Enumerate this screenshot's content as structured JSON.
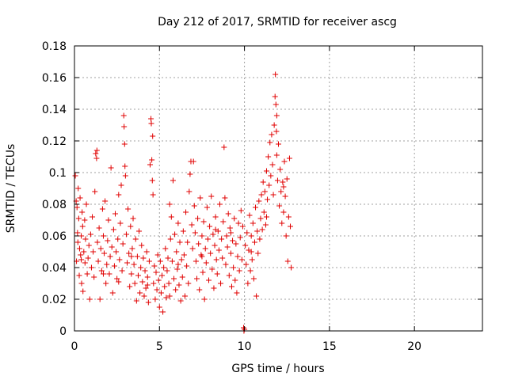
{
  "chart_data": {
    "type": "scatter",
    "title": "Day 212 of 2017, SRMTID for receiver ascg",
    "xlabel": "GPS time / hours",
    "ylabel": "SRMTID / TECUs",
    "xlim": [
      0,
      24
    ],
    "ylim": [
      0,
      0.18
    ],
    "x_ticks": [
      0,
      5,
      10,
      15,
      20
    ],
    "x_tick_labels": [
      "0",
      "5",
      "10",
      "15",
      "20"
    ],
    "y_ticks": [
      0,
      0.02,
      0.04,
      0.06,
      0.08,
      0.1,
      0.12,
      0.14,
      0.16,
      0.18
    ],
    "y_tick_labels": [
      "0",
      "0.02",
      "0.04",
      "0.06",
      "0.08",
      "0.1",
      "0.12",
      "0.14",
      "0.16",
      "0.18"
    ],
    "grid": true,
    "marker": "+",
    "color": "#e00000",
    "series": [
      {
        "name": "SRMTID",
        "points": [
          [
            0.05,
            0.098
          ],
          [
            0.1,
            0.082
          ],
          [
            0.12,
            0.044
          ],
          [
            0.15,
            0.078
          ],
          [
            0.18,
            0.062
          ],
          [
            0.2,
            0.056
          ],
          [
            0.22,
            0.09
          ],
          [
            0.25,
            0.071
          ],
          [
            0.28,
            0.035
          ],
          [
            0.3,
            0.052
          ],
          [
            0.33,
            0.084
          ],
          [
            0.36,
            0.048
          ],
          [
            0.4,
            0.06
          ],
          [
            0.42,
            0.03
          ],
          [
            0.45,
            0.075
          ],
          [
            0.48,
            0.066
          ],
          [
            0.5,
            0.025
          ],
          [
            0.55,
            0.05
          ],
          [
            0.6,
            0.07
          ],
          [
            0.62,
            0.043
          ],
          [
            0.65,
            0.058
          ],
          [
            0.7,
            0.08
          ],
          [
            0.75,
            0.036
          ],
          [
            0.8,
            0.046
          ],
          [
            0.85,
            0.054
          ],
          [
            0.9,
            0.02
          ],
          [
            0.95,
            0.061
          ],
          [
            1.0,
            0.04
          ],
          [
            1.05,
            0.072
          ],
          [
            1.1,
            0.05
          ],
          [
            1.15,
            0.034
          ],
          [
            1.2,
            0.088
          ],
          [
            1.25,
            0.112
          ],
          [
            1.3,
            0.109
          ],
          [
            1.32,
            0.114
          ],
          [
            1.35,
            0.056
          ],
          [
            1.4,
            0.044
          ],
          [
            1.45,
            0.065
          ],
          [
            1.5,
            0.02
          ],
          [
            1.55,
            0.052
          ],
          [
            1.6,
            0.038
          ],
          [
            1.65,
            0.077
          ],
          [
            1.7,
            0.06
          ],
          [
            1.75,
            0.049
          ],
          [
            1.8,
            0.082
          ],
          [
            1.85,
            0.03
          ],
          [
            1.9,
            0.042
          ],
          [
            1.95,
            0.057
          ],
          [
            2.0,
            0.07
          ],
          [
            2.05,
            0.036
          ],
          [
            2.1,
            0.047
          ],
          [
            2.15,
            0.103
          ],
          [
            2.2,
            0.053
          ],
          [
            2.25,
            0.024
          ],
          [
            2.3,
            0.064
          ],
          [
            2.35,
            0.041
          ],
          [
            2.4,
            0.074
          ],
          [
            2.45,
            0.05
          ],
          [
            2.5,
            0.033
          ],
          [
            2.55,
            0.058
          ],
          [
            2.6,
            0.086
          ],
          [
            2.65,
            0.045
          ],
          [
            2.7,
            0.068
          ],
          [
            2.75,
            0.092
          ],
          [
            2.8,
            0.038
          ],
          [
            2.85,
            0.055
          ],
          [
            2.9,
            0.136
          ],
          [
            2.92,
            0.129
          ],
          [
            2.95,
            0.118
          ],
          [
            2.97,
            0.104
          ],
          [
            3.0,
            0.098
          ],
          [
            3.05,
            0.061
          ],
          [
            3.1,
            0.043
          ],
          [
            3.15,
            0.077
          ],
          [
            3.2,
            0.049
          ],
          [
            3.25,
            0.028
          ],
          [
            3.3,
            0.066
          ],
          [
            3.35,
            0.036
          ],
          [
            3.4,
            0.052
          ],
          [
            3.45,
            0.071
          ],
          [
            3.5,
            0.042
          ],
          [
            3.55,
            0.03
          ],
          [
            3.6,
            0.058
          ],
          [
            3.65,
            0.019
          ],
          [
            3.7,
            0.047
          ],
          [
            3.75,
            0.035
          ],
          [
            3.8,
            0.063
          ],
          [
            3.85,
            0.024
          ],
          [
            3.9,
            0.04
          ],
          [
            3.95,
            0.054
          ],
          [
            4.0,
            0.031
          ],
          [
            4.05,
            0.046
          ],
          [
            4.1,
            0.022
          ],
          [
            4.15,
            0.038
          ],
          [
            4.2,
            0.027
          ],
          [
            4.25,
            0.05
          ],
          [
            4.3,
            0.034
          ],
          [
            4.35,
            0.018
          ],
          [
            4.4,
            0.044
          ],
          [
            4.45,
            0.105
          ],
          [
            4.5,
            0.134
          ],
          [
            4.52,
            0.131
          ],
          [
            4.55,
            0.108
          ],
          [
            4.58,
            0.095
          ],
          [
            4.6,
            0.123
          ],
          [
            4.62,
            0.086
          ],
          [
            4.65,
            0.03
          ],
          [
            4.7,
            0.041
          ],
          [
            4.75,
            0.02
          ],
          [
            4.8,
            0.037
          ],
          [
            4.85,
            0.026
          ],
          [
            4.9,
            0.048
          ],
          [
            4.95,
            0.032
          ],
          [
            5.0,
            0.015
          ],
          [
            5.05,
            0.044
          ],
          [
            5.1,
            0.024
          ],
          [
            5.15,
            0.035
          ],
          [
            5.2,
            0.012
          ],
          [
            5.25,
            0.04
          ],
          [
            5.3,
            0.028
          ],
          [
            5.35,
            0.052
          ],
          [
            5.4,
            0.021
          ],
          [
            5.45,
            0.038
          ],
          [
            5.5,
            0.046
          ],
          [
            5.55,
            0.03
          ],
          [
            5.6,
            0.08
          ],
          [
            5.65,
            0.058
          ],
          [
            5.7,
            0.072
          ],
          [
            5.75,
            0.044
          ],
          [
            5.8,
            0.095
          ],
          [
            5.85,
            0.033
          ],
          [
            5.9,
            0.061
          ],
          [
            5.95,
            0.026
          ],
          [
            6.0,
            0.05
          ],
          [
            6.05,
            0.039
          ],
          [
            6.1,
            0.068
          ],
          [
            6.15,
            0.029
          ],
          [
            6.2,
            0.056
          ],
          [
            6.25,
            0.019
          ],
          [
            6.3,
            0.045
          ],
          [
            6.35,
            0.034
          ],
          [
            6.4,
            0.063
          ],
          [
            6.45,
            0.048
          ],
          [
            6.5,
            0.022
          ],
          [
            6.55,
            0.075
          ],
          [
            6.6,
            0.041
          ],
          [
            6.65,
            0.056
          ],
          [
            6.7,
            0.03
          ],
          [
            6.75,
            0.088
          ],
          [
            6.8,
            0.099
          ],
          [
            6.85,
            0.107
          ],
          [
            6.9,
            0.067
          ],
          [
            6.95,
            0.052
          ],
          [
            7.0,
            0.107
          ],
          [
            7.05,
            0.079
          ],
          [
            7.1,
            0.062
          ],
          [
            7.15,
            0.044
          ],
          [
            7.2,
            0.033
          ],
          [
            7.25,
            0.071
          ],
          [
            7.3,
            0.055
          ],
          [
            7.35,
            0.026
          ],
          [
            7.4,
            0.084
          ],
          [
            7.45,
            0.048
          ],
          [
            7.5,
            0.06
          ],
          [
            7.55,
            0.037
          ],
          [
            7.6,
            0.069
          ],
          [
            7.65,
            0.02
          ],
          [
            7.7,
            0.052
          ],
          [
            7.75,
            0.043
          ],
          [
            7.8,
            0.078
          ],
          [
            7.85,
            0.058
          ],
          [
            7.9,
            0.032
          ],
          [
            7.95,
            0.066
          ],
          [
            8.0,
            0.049
          ],
          [
            8.05,
            0.085
          ],
          [
            8.1,
            0.039
          ],
          [
            8.15,
            0.061
          ],
          [
            8.2,
            0.027
          ],
          [
            8.25,
            0.054
          ],
          [
            8.3,
            0.072
          ],
          [
            8.35,
            0.045
          ],
          [
            8.4,
            0.036
          ],
          [
            8.45,
            0.063
          ],
          [
            8.5,
            0.051
          ],
          [
            8.55,
            0.08
          ],
          [
            8.6,
            0.03
          ],
          [
            8.65,
            0.058
          ],
          [
            8.7,
            0.046
          ],
          [
            8.75,
            0.069
          ],
          [
            8.8,
            0.116
          ],
          [
            8.85,
            0.084
          ],
          [
            8.9,
            0.042
          ],
          [
            8.95,
            0.06
          ],
          [
            9.0,
            0.053
          ],
          [
            9.05,
            0.074
          ],
          [
            9.1,
            0.035
          ],
          [
            9.15,
            0.065
          ],
          [
            9.2,
            0.049
          ],
          [
            9.25,
            0.028
          ],
          [
            9.3,
            0.057
          ],
          [
            9.35,
            0.04
          ],
          [
            9.4,
            0.071
          ],
          [
            9.45,
            0.032
          ],
          [
            9.5,
            0.055
          ],
          [
            9.55,
            0.024
          ],
          [
            9.6,
            0.047
          ],
          [
            9.65,
            0.068
          ],
          [
            9.7,
            0.038
          ],
          [
            9.75,
            0.059
          ],
          [
            9.8,
            0.076
          ],
          [
            9.85,
            0.045
          ],
          [
            9.9,
            0.066
          ],
          [
            9.95,
            0.002
          ],
          [
            9.97,
            0.0
          ],
          [
            10.0,
            0.001
          ],
          [
            10.05,
            0.054
          ],
          [
            10.1,
            0.042
          ],
          [
            10.15,
            0.062
          ],
          [
            10.2,
            0.03
          ],
          [
            10.25,
            0.051
          ],
          [
            10.3,
            0.073
          ],
          [
            10.35,
            0.038
          ],
          [
            10.4,
            0.06
          ],
          [
            10.45,
            0.045
          ],
          [
            10.5,
            0.068
          ],
          [
            10.55,
            0.033
          ],
          [
            10.6,
            0.056
          ],
          [
            10.65,
            0.078
          ],
          [
            10.7,
            0.022
          ],
          [
            10.75,
            0.063
          ],
          [
            10.8,
            0.049
          ],
          [
            10.85,
            0.082
          ],
          [
            10.9,
            0.058
          ],
          [
            10.95,
            0.071
          ],
          [
            11.0,
            0.086
          ],
          [
            11.05,
            0.064
          ],
          [
            11.1,
            0.094
          ],
          [
            11.15,
            0.075
          ],
          [
            11.2,
            0.088
          ],
          [
            11.25,
            0.067
          ],
          [
            11.3,
            0.101
          ],
          [
            11.35,
            0.083
          ],
          [
            11.4,
            0.11
          ],
          [
            11.45,
            0.092
          ],
          [
            11.5,
            0.119
          ],
          [
            11.55,
            0.098
          ],
          [
            11.6,
            0.124
          ],
          [
            11.65,
            0.105
          ],
          [
            11.7,
            0.086
          ],
          [
            11.75,
            0.13
          ],
          [
            11.8,
            0.148
          ],
          [
            11.82,
            0.162
          ],
          [
            11.85,
            0.143
          ],
          [
            11.88,
            0.126
          ],
          [
            11.9,
            0.111
          ],
          [
            11.95,
            0.095
          ],
          [
            12.0,
            0.118
          ],
          [
            12.05,
            0.079
          ],
          [
            12.1,
            0.102
          ],
          [
            12.15,
            0.088
          ],
          [
            12.2,
            0.068
          ],
          [
            12.25,
            0.094
          ],
          [
            12.3,
            0.075
          ],
          [
            12.35,
            0.107
          ],
          [
            12.4,
            0.085
          ],
          [
            12.45,
            0.06
          ],
          [
            12.5,
            0.096
          ],
          [
            12.55,
            0.044
          ],
          [
            12.6,
            0.072
          ],
          [
            12.65,
            0.109
          ],
          [
            12.7,
            0.066
          ],
          [
            12.75,
            0.04
          ],
          [
            0.4,
            0.045
          ],
          [
            1.7,
            0.036
          ],
          [
            2.6,
            0.031
          ],
          [
            3.35,
            0.047
          ],
          [
            4.3,
            0.029
          ],
          [
            5.6,
            0.022
          ],
          [
            6.1,
            0.042
          ],
          [
            7.5,
            0.047
          ],
          [
            8.3,
            0.064
          ],
          [
            9.2,
            0.062
          ],
          [
            10.4,
            0.05
          ],
          [
            11.3,
            0.072
          ],
          [
            11.9,
            0.136
          ],
          [
            12.3,
            0.091
          ]
        ]
      }
    ]
  }
}
